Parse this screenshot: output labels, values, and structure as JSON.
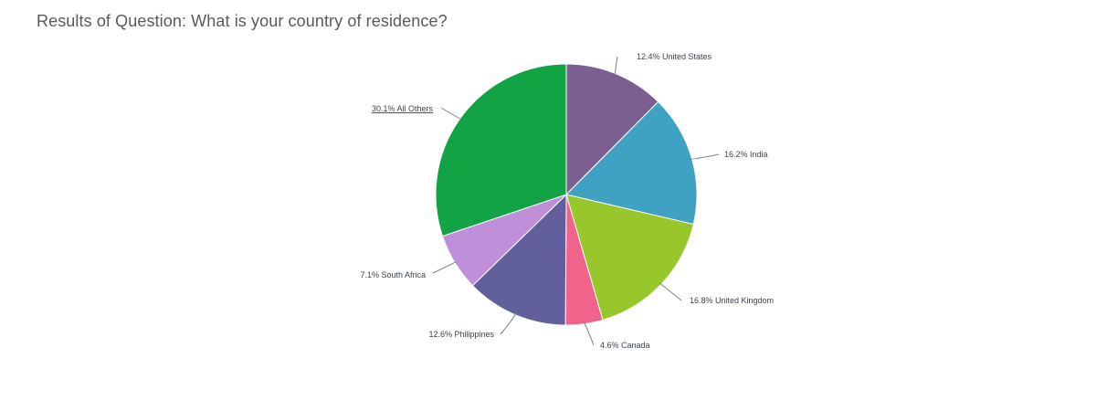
{
  "page": {
    "title": "Results of Question: What is your country of residence?"
  },
  "chart_data": {
    "type": "pie",
    "title": "Results of Question: What is your country of residence?",
    "start_angle": "12 o'clock, clockwise",
    "legend": "none (leader-line labels)",
    "slices": [
      {
        "label": "United States",
        "value": 12.4,
        "display": "12.4% United States",
        "color": "#7B5F91"
      },
      {
        "label": "India",
        "value": 16.2,
        "display": "16.2% India",
        "color": "#3FA2C2"
      },
      {
        "label": "United Kingdom",
        "value": 16.8,
        "display": "16.8% United Kingdom",
        "color": "#97C72B"
      },
      {
        "label": "Canada",
        "value": 4.6,
        "display": "4.6% Canada",
        "color": "#F0638A"
      },
      {
        "label": "Philippines",
        "value": 12.6,
        "display": "12.6% Philippines",
        "color": "#62609C"
      },
      {
        "label": "South Africa",
        "value": 7.1,
        "display": "7.1% South Africa",
        "color": "#C08FDA"
      },
      {
        "label": "All Others",
        "value": 30.1,
        "display": "30.1% All Others",
        "color": "#12A345"
      }
    ]
  }
}
